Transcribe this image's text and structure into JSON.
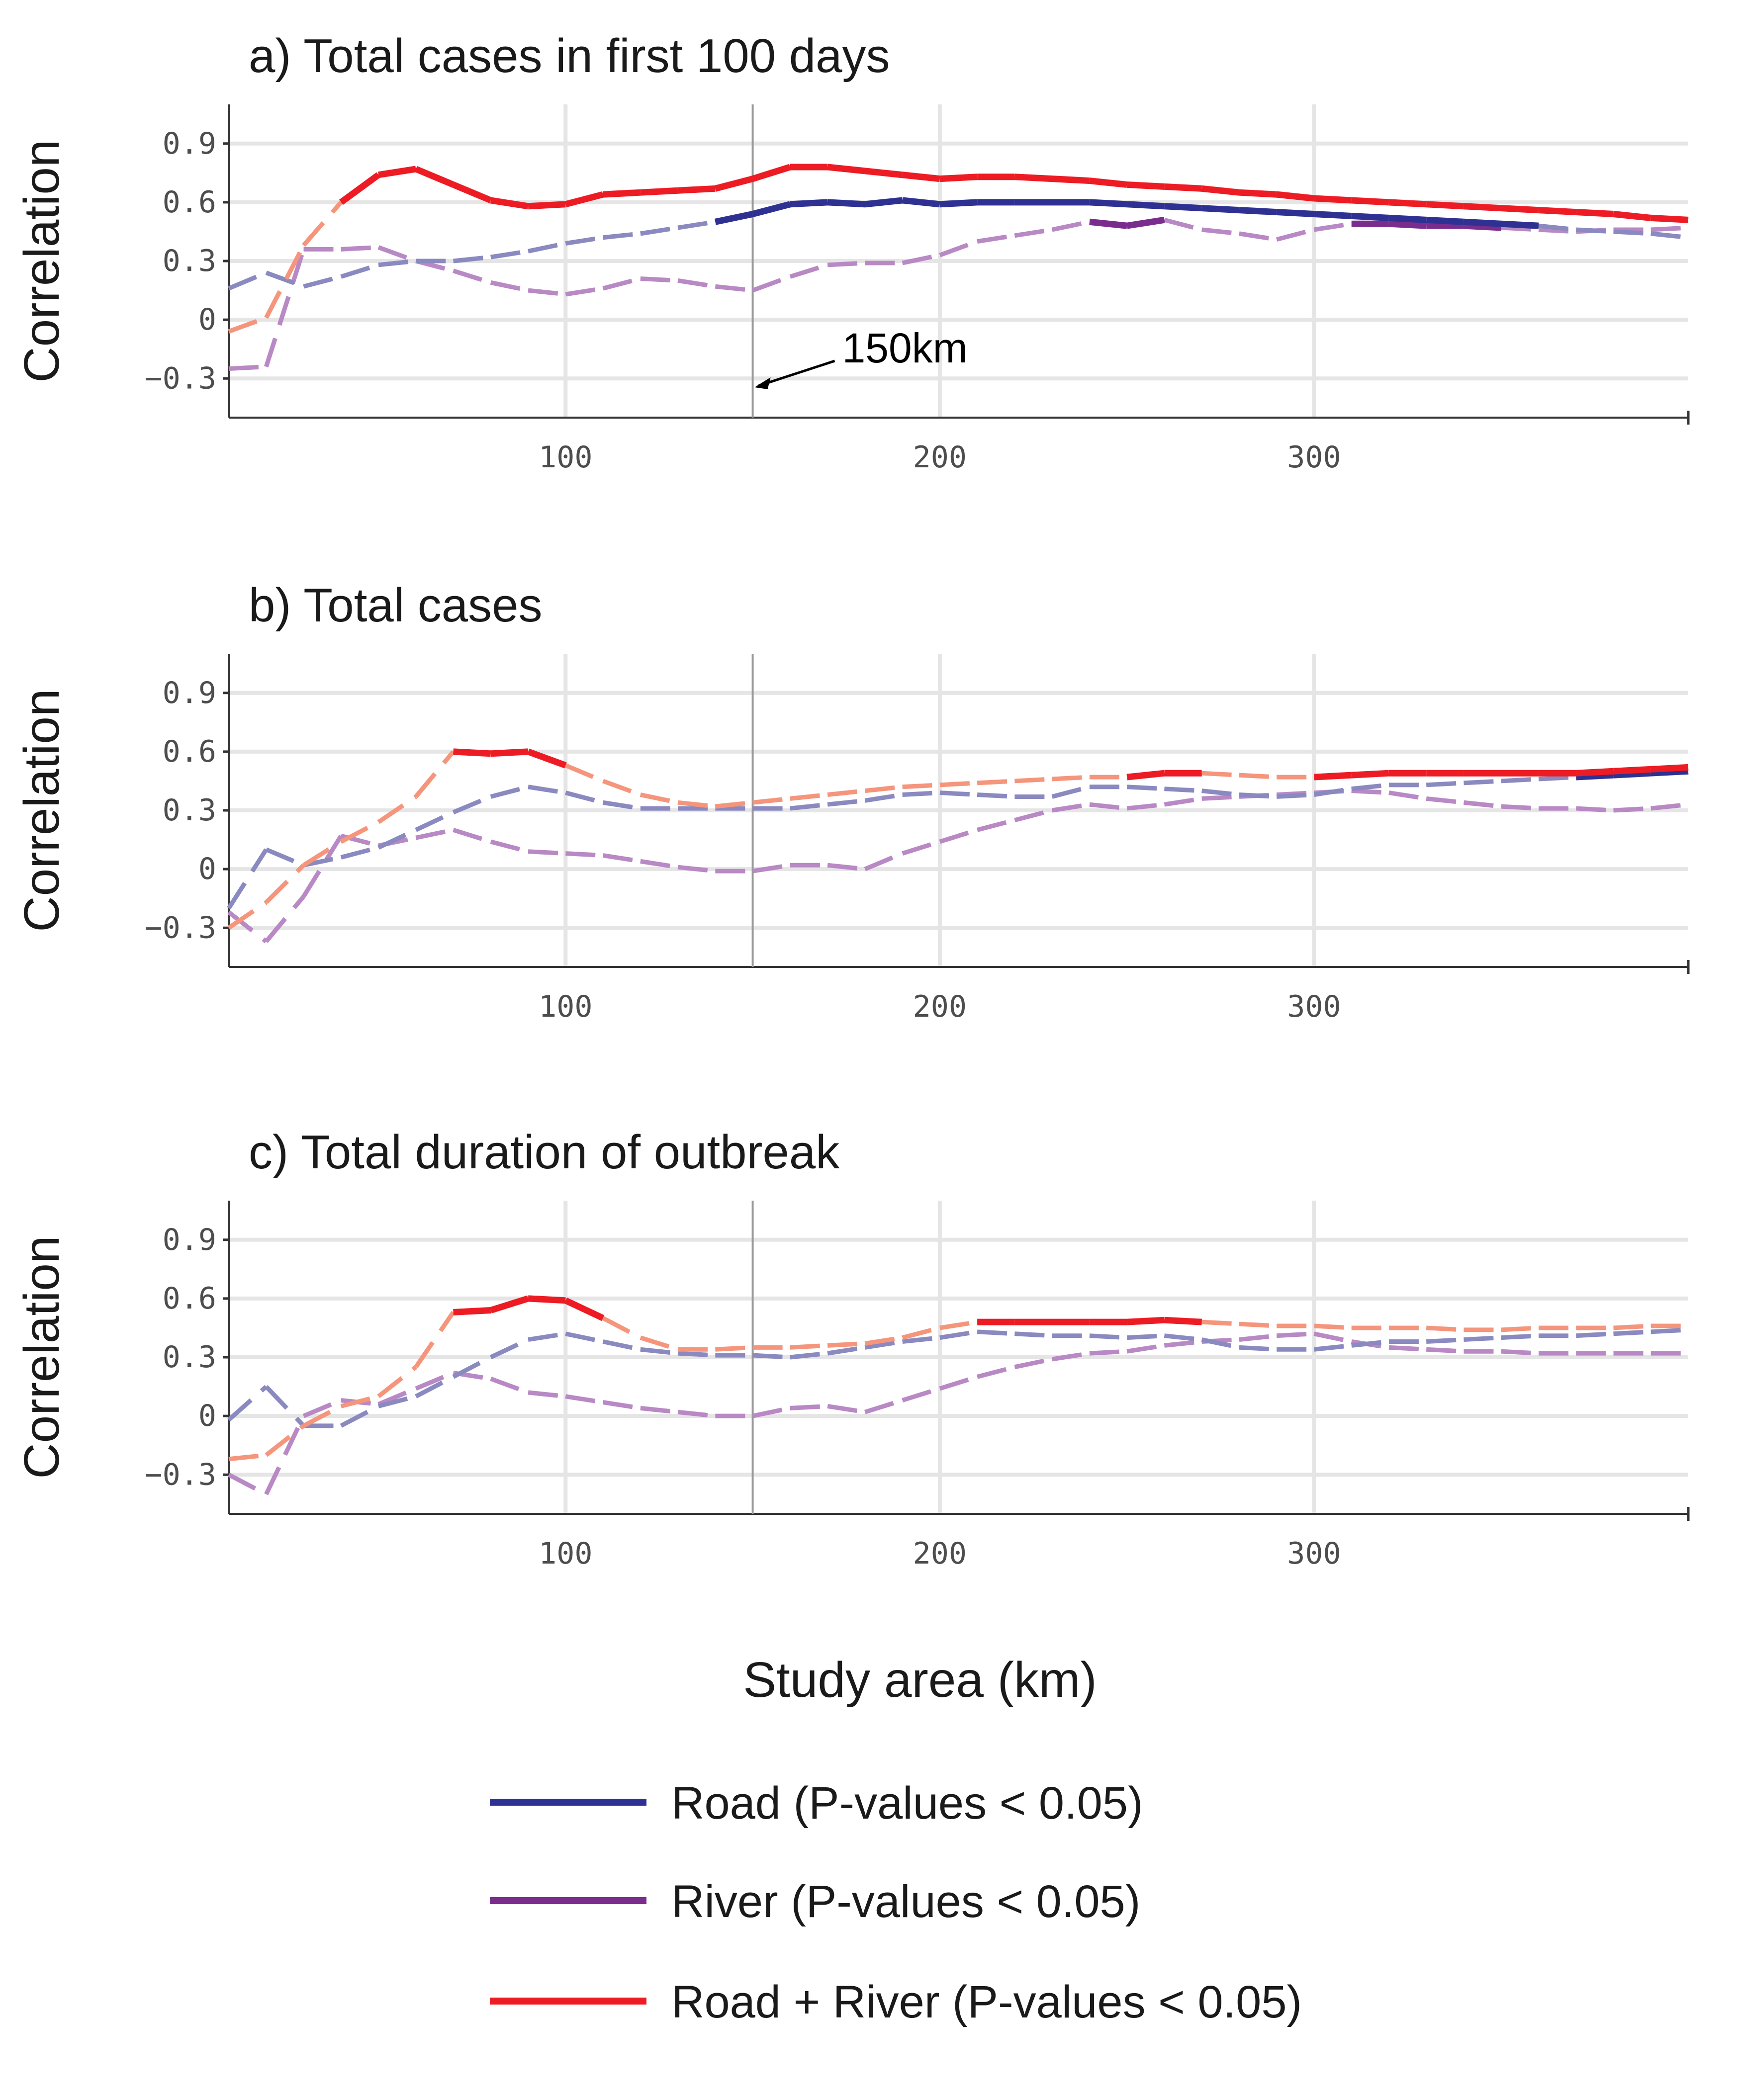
{
  "chart_data": [
    {
      "type": "line",
      "title": "a) Total cases in first 100 days",
      "ylabel": "Correlation",
      "xlabel": "",
      "xlim": [
        10,
        400
      ],
      "ylim": [
        -0.5,
        1.1
      ],
      "yticks": [
        "0.9",
        "0.6",
        "0.3",
        "0",
        "−0.3"
      ],
      "ytick_values": [
        0.9,
        0.6,
        0.3,
        0,
        -0.3
      ],
      "xticks": [
        "100",
        "200",
        "300"
      ],
      "xtick_values": [
        100,
        200,
        300
      ],
      "reference_line": {
        "x": 150,
        "label": "150km"
      },
      "x": [
        10,
        20,
        30,
        40,
        50,
        60,
        70,
        80,
        90,
        100,
        110,
        120,
        130,
        140,
        150,
        160,
        170,
        180,
        190,
        200,
        210,
        220,
        230,
        240,
        250,
        260,
        270,
        280,
        290,
        300,
        310,
        320,
        330,
        340,
        350,
        360,
        370,
        380,
        390,
        400
      ],
      "series": [
        {
          "key": "road",
          "values": [
            0.16,
            0.24,
            0.17,
            0.22,
            0.28,
            0.3,
            0.3,
            0.32,
            0.35,
            0.39,
            0.42,
            0.44,
            0.47,
            0.5,
            0.54,
            0.59,
            0.6,
            0.59,
            0.61,
            0.59,
            0.6,
            0.6,
            0.6,
            0.6,
            0.59,
            0.58,
            0.57,
            0.56,
            0.55,
            0.54,
            0.53,
            0.52,
            0.51,
            0.5,
            0.49,
            0.48,
            0.46,
            0.45,
            0.44,
            0.42
          ],
          "significant": [
            false,
            false,
            false,
            false,
            false,
            false,
            false,
            false,
            false,
            false,
            false,
            false,
            false,
            true,
            true,
            true,
            true,
            true,
            true,
            true,
            true,
            true,
            true,
            true,
            true,
            true,
            true,
            true,
            true,
            true,
            true,
            true,
            true,
            true,
            true,
            true,
            false,
            false,
            false,
            false
          ]
        },
        {
          "key": "river",
          "values": [
            -0.25,
            -0.24,
            0.36,
            0.36,
            0.37,
            0.3,
            0.25,
            0.19,
            0.15,
            0.13,
            0.16,
            0.21,
            0.2,
            0.17,
            0.15,
            0.22,
            0.28,
            0.29,
            0.29,
            0.33,
            0.4,
            0.43,
            0.46,
            0.5,
            0.48,
            0.51,
            0.46,
            0.44,
            0.41,
            0.46,
            0.49,
            0.49,
            0.48,
            0.48,
            0.47,
            0.46,
            0.45,
            0.46,
            0.46,
            0.47
          ],
          "significant": [
            false,
            false,
            false,
            false,
            false,
            false,
            false,
            false,
            false,
            false,
            false,
            false,
            false,
            false,
            false,
            false,
            false,
            false,
            false,
            false,
            false,
            false,
            false,
            true,
            true,
            true,
            false,
            false,
            false,
            false,
            true,
            true,
            true,
            true,
            true,
            false,
            false,
            false,
            false,
            false
          ]
        },
        {
          "key": "road_river",
          "values": [
            -0.06,
            0.01,
            0.38,
            0.6,
            0.74,
            0.77,
            0.69,
            0.61,
            0.58,
            0.59,
            0.64,
            0.65,
            0.66,
            0.67,
            0.72,
            0.78,
            0.78,
            0.76,
            0.74,
            0.72,
            0.73,
            0.73,
            0.72,
            0.71,
            0.69,
            0.68,
            0.67,
            0.65,
            0.64,
            0.62,
            0.61,
            0.6,
            0.59,
            0.58,
            0.57,
            0.56,
            0.55,
            0.54,
            0.52,
            0.51
          ],
          "significant": [
            false,
            false,
            false,
            true,
            true,
            true,
            true,
            true,
            true,
            true,
            true,
            true,
            true,
            true,
            true,
            true,
            true,
            true,
            true,
            true,
            true,
            true,
            true,
            true,
            true,
            true,
            true,
            true,
            true,
            true,
            true,
            true,
            true,
            true,
            true,
            true,
            true,
            true,
            true,
            true
          ]
        }
      ]
    },
    {
      "type": "line",
      "title": "b) Total cases",
      "ylabel": "Correlation",
      "xlabel": "",
      "xlim": [
        10,
        400
      ],
      "ylim": [
        -0.5,
        1.1
      ],
      "yticks": [
        "0.9",
        "0.6",
        "0.3",
        "0",
        "−0.3"
      ],
      "ytick_values": [
        0.9,
        0.6,
        0.3,
        0,
        -0.3
      ],
      "xticks": [
        "100",
        "200",
        "300"
      ],
      "xtick_values": [
        100,
        200,
        300
      ],
      "reference_line": {
        "x": 150
      },
      "x": [
        10,
        20,
        30,
        40,
        50,
        60,
        70,
        80,
        90,
        100,
        110,
        120,
        130,
        140,
        150,
        160,
        170,
        180,
        190,
        200,
        210,
        220,
        230,
        240,
        250,
        260,
        270,
        280,
        290,
        300,
        310,
        320,
        330,
        340,
        350,
        360,
        370,
        380,
        390,
        400
      ],
      "series": [
        {
          "key": "road",
          "values": [
            -0.2,
            0.1,
            0.02,
            0.06,
            0.11,
            0.2,
            0.29,
            0.37,
            0.42,
            0.39,
            0.34,
            0.31,
            0.31,
            0.31,
            0.31,
            0.31,
            0.33,
            0.35,
            0.38,
            0.39,
            0.38,
            0.37,
            0.37,
            0.42,
            0.42,
            0.41,
            0.4,
            0.38,
            0.37,
            0.38,
            0.41,
            0.43,
            0.43,
            0.44,
            0.45,
            0.46,
            0.47,
            0.48,
            0.49,
            0.5
          ],
          "significant": [
            false,
            false,
            false,
            false,
            false,
            false,
            false,
            false,
            false,
            false,
            false,
            false,
            false,
            false,
            false,
            false,
            false,
            false,
            false,
            false,
            false,
            false,
            false,
            false,
            false,
            false,
            false,
            false,
            false,
            false,
            false,
            false,
            false,
            false,
            false,
            false,
            true,
            true,
            true,
            true
          ]
        },
        {
          "key": "river",
          "values": [
            -0.22,
            -0.37,
            -0.14,
            0.17,
            0.12,
            0.16,
            0.2,
            0.14,
            0.09,
            0.08,
            0.07,
            0.04,
            0.01,
            -0.01,
            -0.01,
            0.02,
            0.02,
            0.0,
            0.08,
            0.14,
            0.2,
            0.25,
            0.3,
            0.33,
            0.31,
            0.33,
            0.36,
            0.37,
            0.38,
            0.39,
            0.4,
            0.39,
            0.36,
            0.34,
            0.32,
            0.31,
            0.31,
            0.3,
            0.31,
            0.33
          ],
          "significant": [
            false,
            false,
            false,
            false,
            false,
            false,
            false,
            false,
            false,
            false,
            false,
            false,
            false,
            false,
            false,
            false,
            false,
            false,
            false,
            false,
            false,
            false,
            false,
            false,
            false,
            false,
            false,
            false,
            false,
            false,
            false,
            false,
            false,
            false,
            false,
            false,
            false,
            false,
            false,
            false
          ]
        },
        {
          "key": "road_river",
          "values": [
            -0.3,
            -0.17,
            0.02,
            0.14,
            0.24,
            0.37,
            0.6,
            0.59,
            0.6,
            0.53,
            0.45,
            0.38,
            0.34,
            0.32,
            0.34,
            0.36,
            0.38,
            0.4,
            0.42,
            0.43,
            0.44,
            0.45,
            0.46,
            0.47,
            0.47,
            0.49,
            0.49,
            0.48,
            0.47,
            0.47,
            0.48,
            0.49,
            0.49,
            0.49,
            0.49,
            0.49,
            0.49,
            0.5,
            0.51,
            0.52
          ],
          "significant": [
            false,
            false,
            false,
            false,
            false,
            false,
            true,
            true,
            true,
            true,
            false,
            false,
            false,
            false,
            false,
            false,
            false,
            false,
            false,
            false,
            false,
            false,
            false,
            false,
            true,
            true,
            true,
            false,
            false,
            true,
            true,
            true,
            true,
            true,
            true,
            true,
            true,
            true,
            true,
            true
          ]
        }
      ]
    },
    {
      "type": "line",
      "title": "c) Total duration of outbreak",
      "ylabel": "Correlation",
      "xlabel": "",
      "xlim": [
        10,
        400
      ],
      "ylim": [
        -0.5,
        1.1
      ],
      "yticks": [
        "0.9",
        "0.6",
        "0.3",
        "0",
        "−0.3"
      ],
      "ytick_values": [
        0.9,
        0.6,
        0.3,
        0,
        -0.3
      ],
      "xticks": [
        "100",
        "200",
        "300"
      ],
      "xtick_values": [
        100,
        200,
        300
      ],
      "reference_line": {
        "x": 150
      },
      "x": [
        10,
        20,
        30,
        40,
        50,
        60,
        70,
        80,
        90,
        100,
        110,
        120,
        130,
        140,
        150,
        160,
        170,
        180,
        190,
        200,
        210,
        220,
        230,
        240,
        250,
        260,
        270,
        280,
        290,
        300,
        310,
        320,
        330,
        340,
        350,
        360,
        370,
        380,
        390,
        400
      ],
      "series": [
        {
          "key": "road",
          "values": [
            -0.02,
            0.15,
            -0.05,
            -0.05,
            0.05,
            0.1,
            0.2,
            0.3,
            0.39,
            0.42,
            0.38,
            0.34,
            0.32,
            0.31,
            0.31,
            0.3,
            0.32,
            0.35,
            0.38,
            0.4,
            0.43,
            0.42,
            0.41,
            0.41,
            0.4,
            0.41,
            0.39,
            0.35,
            0.34,
            0.34,
            0.36,
            0.38,
            0.38,
            0.39,
            0.4,
            0.41,
            0.41,
            0.42,
            0.43,
            0.44
          ],
          "significant": [
            false,
            false,
            false,
            false,
            false,
            false,
            false,
            false,
            false,
            false,
            false,
            false,
            false,
            false,
            false,
            false,
            false,
            false,
            false,
            false,
            false,
            false,
            false,
            false,
            false,
            false,
            false,
            false,
            false,
            false,
            false,
            false,
            false,
            false,
            false,
            false,
            false,
            false,
            false,
            false
          ]
        },
        {
          "key": "river",
          "values": [
            -0.3,
            -0.4,
            0.0,
            0.08,
            0.06,
            0.14,
            0.22,
            0.19,
            0.12,
            0.1,
            0.07,
            0.04,
            0.02,
            0.0,
            0.0,
            0.04,
            0.05,
            0.02,
            0.08,
            0.14,
            0.2,
            0.25,
            0.29,
            0.32,
            0.33,
            0.36,
            0.38,
            0.39,
            0.41,
            0.42,
            0.38,
            0.35,
            0.34,
            0.33,
            0.33,
            0.32,
            0.32,
            0.32,
            0.32,
            0.32
          ],
          "significant": [
            false,
            false,
            false,
            false,
            false,
            false,
            false,
            false,
            false,
            false,
            false,
            false,
            false,
            false,
            false,
            false,
            false,
            false,
            false,
            false,
            false,
            false,
            false,
            false,
            false,
            false,
            false,
            false,
            false,
            false,
            false,
            false,
            false,
            false,
            false,
            false,
            false,
            false,
            false,
            false
          ]
        },
        {
          "key": "road_river",
          "values": [
            -0.22,
            -0.2,
            -0.05,
            0.05,
            0.1,
            0.25,
            0.53,
            0.54,
            0.6,
            0.59,
            0.5,
            0.4,
            0.34,
            0.34,
            0.35,
            0.35,
            0.36,
            0.37,
            0.4,
            0.45,
            0.48,
            0.48,
            0.48,
            0.48,
            0.48,
            0.49,
            0.48,
            0.47,
            0.46,
            0.46,
            0.45,
            0.45,
            0.45,
            0.44,
            0.44,
            0.45,
            0.45,
            0.45,
            0.46,
            0.46
          ],
          "significant": [
            false,
            false,
            false,
            false,
            false,
            false,
            true,
            true,
            true,
            true,
            true,
            false,
            false,
            false,
            false,
            false,
            false,
            false,
            false,
            false,
            true,
            true,
            true,
            true,
            true,
            true,
            true,
            false,
            false,
            false,
            false,
            false,
            false,
            false,
            false,
            false,
            false,
            false,
            false,
            false
          ]
        }
      ]
    }
  ],
  "x_axis_title": "Study area (km)",
  "legend": {
    "items": [
      {
        "key": "road",
        "label": "Road (P-values < 0.05)",
        "color": "#2e3192"
      },
      {
        "key": "river",
        "label": "River (P-values < 0.05)",
        "color": "#7b2d8e"
      },
      {
        "key": "road_river",
        "label": "Road + River (P-values < 0.05)",
        "color": "#ed1c24"
      }
    ]
  },
  "series_colors": {
    "road": {
      "significant": "#2e3192",
      "nonsignificant": "#8a89c0"
    },
    "river": {
      "significant": "#7b2d8e",
      "nonsignificant": "#b889c4"
    },
    "road_river": {
      "significant": "#ed1c24",
      "nonsignificant": "#f4957c"
    }
  }
}
